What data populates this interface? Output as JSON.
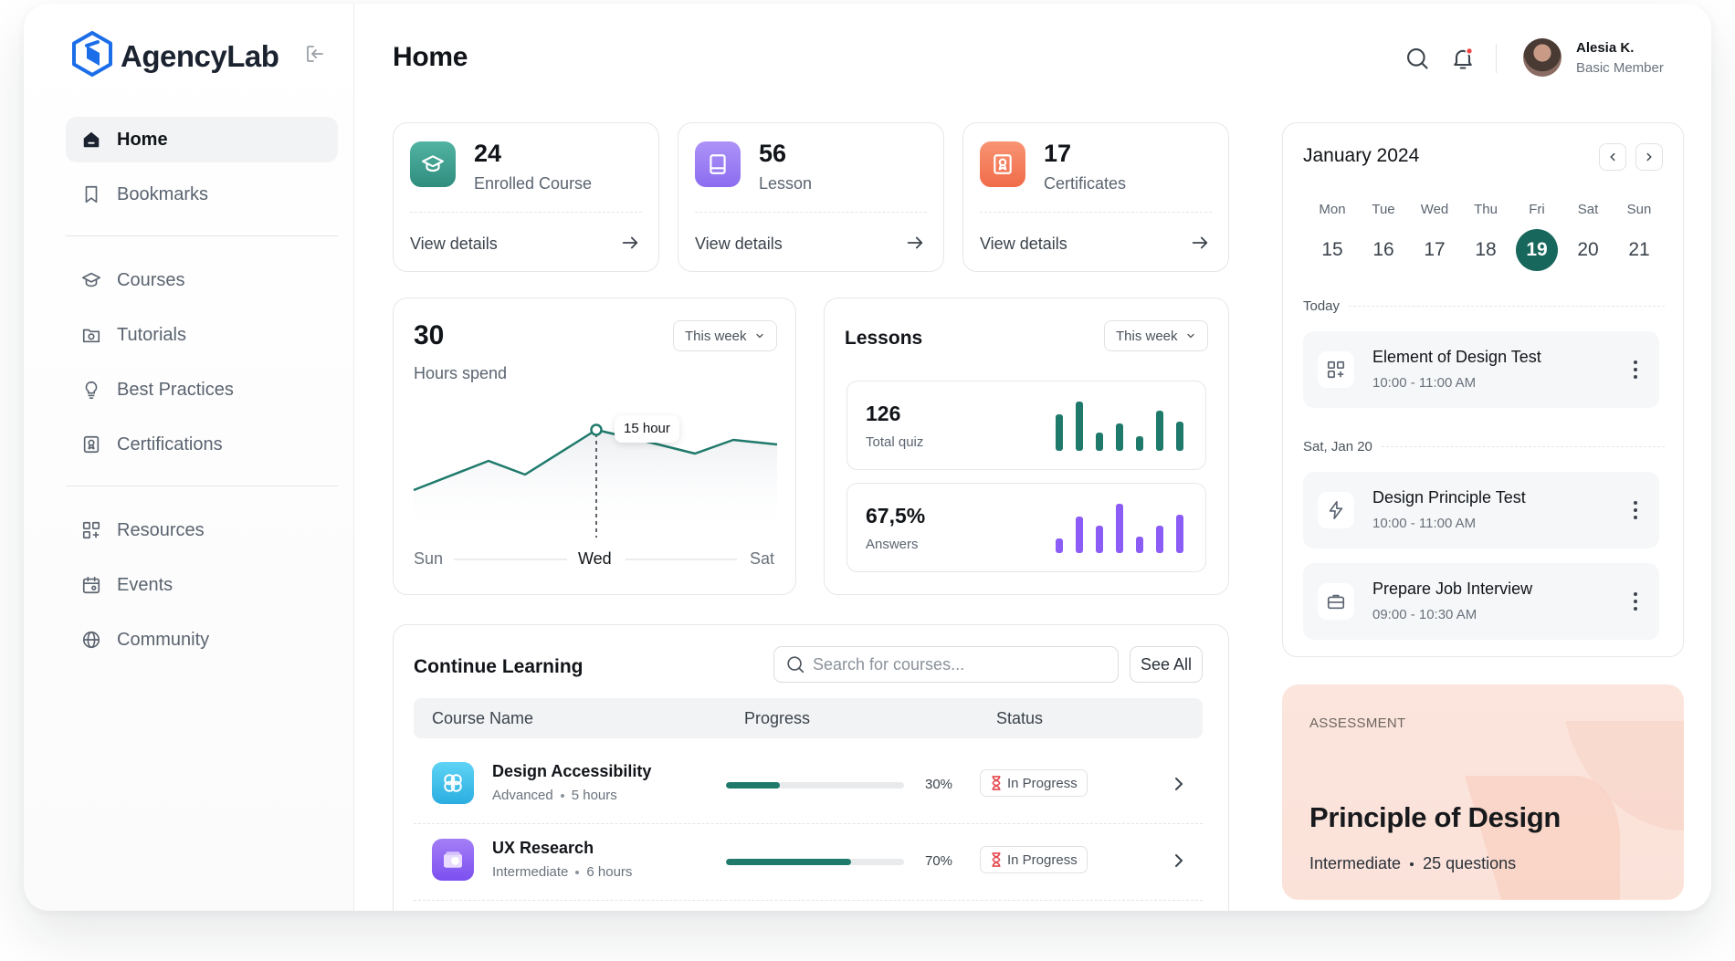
{
  "brand": {
    "name": "AgencyLab"
  },
  "sidebar": {
    "items": [
      {
        "label": "Home"
      },
      {
        "label": "Bookmarks"
      },
      {
        "label": "Courses"
      },
      {
        "label": "Tutorials"
      },
      {
        "label": "Best Practices"
      },
      {
        "label": "Certifications"
      },
      {
        "label": "Resources"
      },
      {
        "label": "Events"
      },
      {
        "label": "Community"
      }
    ]
  },
  "header": {
    "title": "Home",
    "user": {
      "name": "Alesia K.",
      "role": "Basic Member"
    }
  },
  "stats": [
    {
      "value": "24",
      "label": "Enrolled Course",
      "link": "View details",
      "color": "#3f9f8f",
      "icon": "graduation-cap-icon"
    },
    {
      "value": "56",
      "label": "Lesson",
      "link": "View details",
      "color": "#9b7cf2",
      "icon": "book-icon"
    },
    {
      "value": "17",
      "label": "Certificates",
      "link": "View details",
      "color": "#f4805f",
      "icon": "certificate-icon"
    }
  ],
  "hours": {
    "value": "30",
    "label": "Hours spend",
    "dropdown": "This week",
    "tooltip": "15 hour",
    "x_labels": [
      "Sun",
      "Wed",
      "Sat"
    ],
    "accent": "#1f7a6c"
  },
  "lessons": {
    "title": "Lessons",
    "dropdown": "This week",
    "quiz": {
      "value": "126",
      "label": "Total quiz",
      "color": "#1f7a6c"
    },
    "answers": {
      "value": "67,5%",
      "label": "Answers",
      "color": "#8b5cf6"
    }
  },
  "learning": {
    "title": "Continue Learning",
    "search_placeholder": "Search for courses...",
    "see_all": "See All",
    "columns": [
      "Course Name",
      "Progress",
      "Status"
    ],
    "rows": [
      {
        "name": "Design Accessibility",
        "level": "Advanced",
        "duration": "5 hours",
        "progress": 30,
        "progress_label": "30%",
        "status": "In Progress",
        "color": "#3cc4ee"
      },
      {
        "name": "UX Research",
        "level": "Intermediate",
        "duration": "6 hours",
        "progress": 70,
        "progress_label": "70%",
        "status": "In Progress",
        "color": "#8b5cf6"
      }
    ]
  },
  "calendar": {
    "title": "January 2024",
    "days": [
      {
        "name": "Mon",
        "num": "15"
      },
      {
        "name": "Tue",
        "num": "16"
      },
      {
        "name": "Wed",
        "num": "17"
      },
      {
        "name": "Thu",
        "num": "18"
      },
      {
        "name": "Fri",
        "num": "19"
      },
      {
        "name": "Sat",
        "num": "20"
      },
      {
        "name": "Sun",
        "num": "21"
      }
    ],
    "selected": "19",
    "today_label": "Today",
    "later_label": "Sat, Jan 20",
    "events": [
      {
        "title": "Element of Design Test",
        "time": "10:00 - 11:00 AM",
        "icon": "grid-icon"
      },
      {
        "title": "Design Principle Test",
        "time": "10:00 - 11:00 AM",
        "icon": "lightning-icon"
      },
      {
        "title": "Prepare Job Interview",
        "time": "09:00 - 10:30 AM",
        "icon": "briefcase-icon"
      }
    ]
  },
  "assessment": {
    "tag": "ASSESSMENT",
    "title": "Principle of Design",
    "level": "Intermediate",
    "questions": "25 questions"
  }
}
